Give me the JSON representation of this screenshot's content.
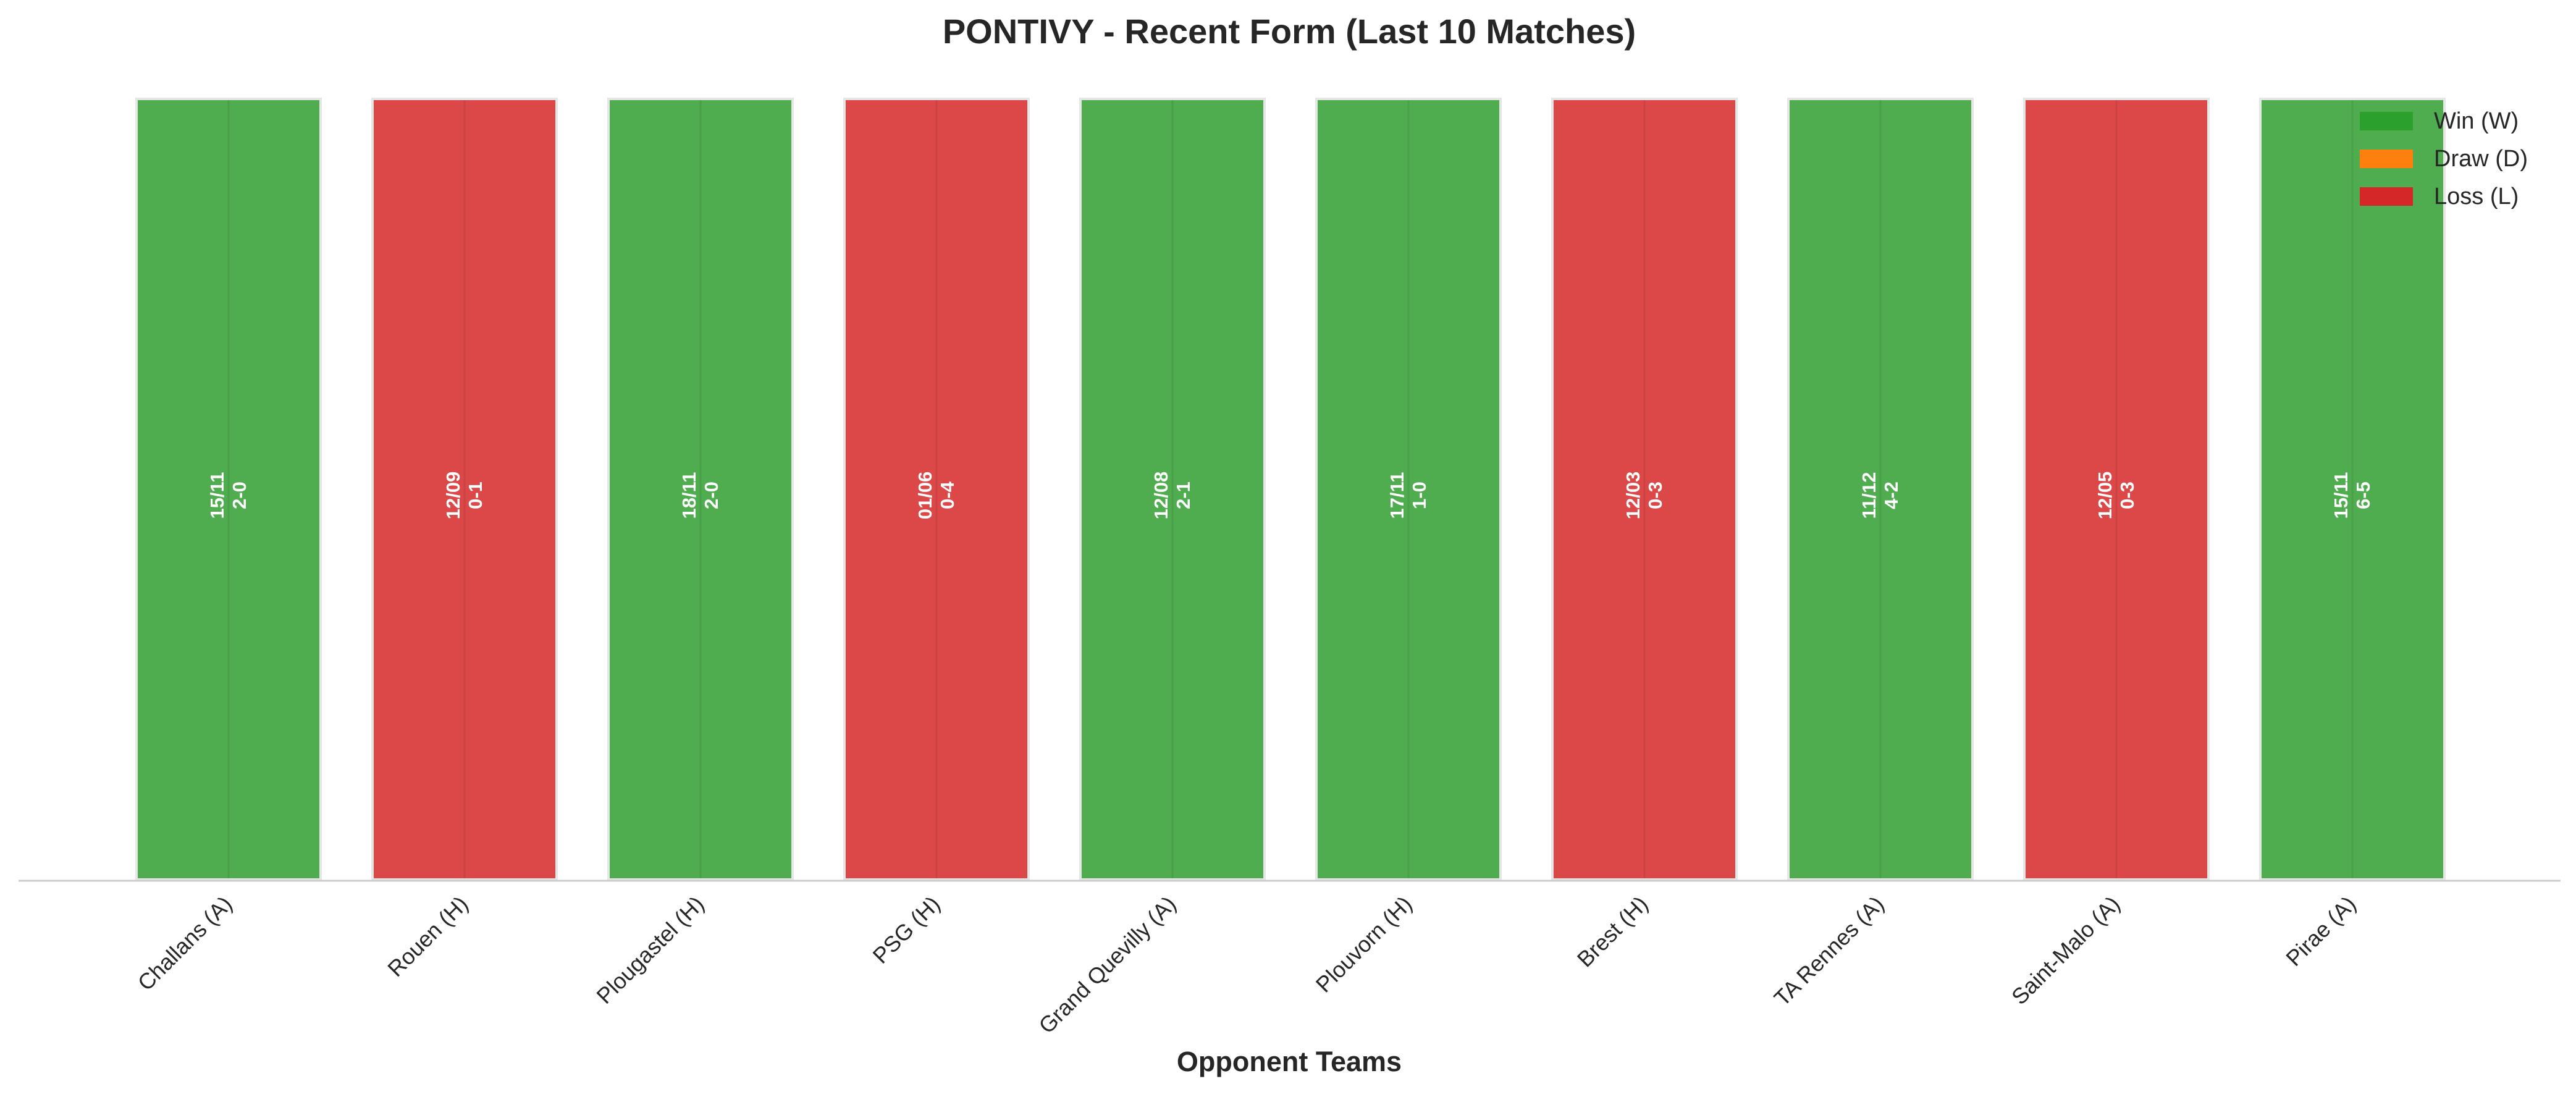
{
  "chart_data": {
    "type": "bar",
    "title": "PONTIVY - Recent Form (Last 10 Matches)",
    "xlabel": "Opponent Teams",
    "ylabel": "",
    "ylim": [
      0,
      1
    ],
    "grid": false,
    "legend_position": "top-right",
    "legend": [
      {
        "label": "Win (W)",
        "color": "#2ca02c"
      },
      {
        "label": "Draw (D)",
        "color": "#ff7f0e"
      },
      {
        "label": "Loss (L)",
        "color": "#d62728"
      }
    ],
    "colors": {
      "W": "#4fad4f",
      "D": "#ff7f0e",
      "L": "#dc4848"
    },
    "categories": [
      "Challans (A)",
      "Rouen (H)",
      "Plougastel (H)",
      "PSG (H)",
      "Grand Quevilly (A)",
      "Plouvorn (H)",
      "Brest (H)",
      "TA Rennes (A)",
      "Saint-Malo (A)",
      "Pirae (A)"
    ],
    "values": [
      1,
      1,
      1,
      1,
      1,
      1,
      1,
      1,
      1,
      1
    ],
    "results": [
      "W",
      "L",
      "W",
      "L",
      "W",
      "W",
      "L",
      "W",
      "L",
      "W"
    ],
    "dates": [
      "15/11",
      "12/09",
      "18/11",
      "01/06",
      "12/08",
      "17/11",
      "12/03",
      "11/12",
      "12/05",
      "15/11"
    ],
    "scores": [
      "2-0",
      "0-1",
      "2-0",
      "0-4",
      "2-1",
      "1-0",
      "0-3",
      "4-2",
      "0-3",
      "6-5"
    ]
  }
}
